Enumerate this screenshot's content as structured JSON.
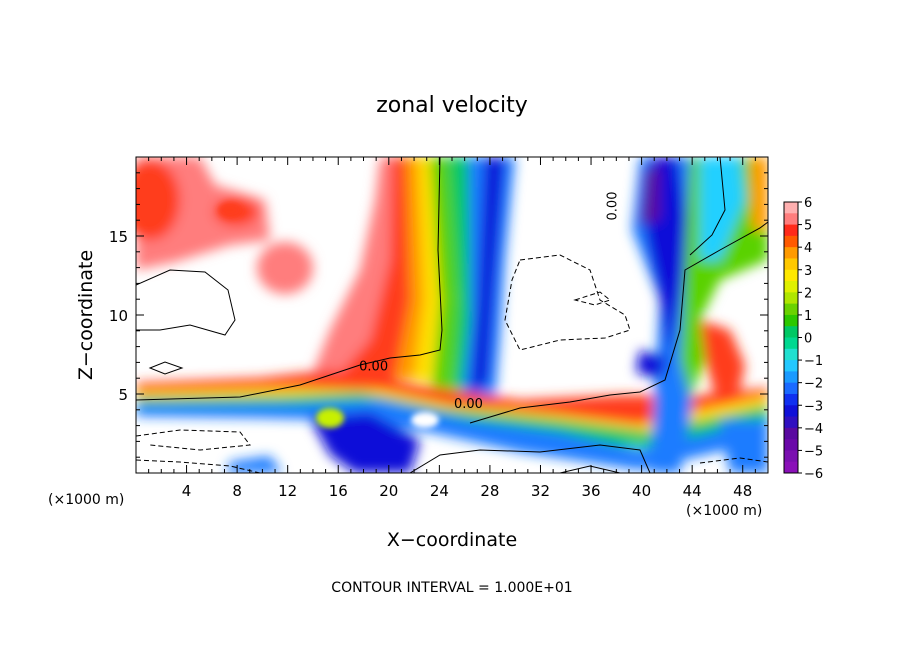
{
  "chart_data": {
    "type": "heatmap",
    "title": "zonal velocity",
    "xlabel": "X−coordinate",
    "ylabel": "Z−coordinate",
    "x_unit_left": "(×1000 m)",
    "x_unit_right": "(×1000 m)",
    "footer": "CONTOUR INTERVAL = 1.000E+01",
    "xlim": [
      0,
      50
    ],
    "ylim": [
      0,
      20
    ],
    "x_ticks": [
      4,
      8,
      12,
      16,
      20,
      24,
      28,
      32,
      36,
      40,
      44,
      48
    ],
    "y_ticks": [
      5,
      10,
      15
    ],
    "x_tick_labels": [
      "4",
      "8",
      "12",
      "16",
      "20",
      "24",
      "28",
      "32",
      "36",
      "40",
      "44",
      "48"
    ],
    "y_tick_labels": [
      "5",
      "10",
      "15"
    ],
    "colorbar": {
      "range": [
        -6,
        6
      ],
      "tick_values": [
        6,
        5,
        4,
        3,
        2,
        1,
        0,
        -1,
        -2,
        -3,
        -4,
        -5,
        -6
      ],
      "tick_labels": [
        "6",
        "5",
        "4",
        "3",
        "2",
        "1",
        "0",
        "−1",
        "−2",
        "−3",
        "−4",
        "−5",
        "−6"
      ]
    },
    "contour_labels": [
      {
        "text": "0.00",
        "x": 18.8,
        "z": 6.5
      },
      {
        "text": "0.00",
        "x": 26.3,
        "z": 4.1
      },
      {
        "text": "0.00",
        "x": 38.0,
        "z": 16.9
      }
    ],
    "saturated_features": [
      {
        "label": "upper-left positive region",
        "x": 0,
        "z": 17
      },
      {
        "label": "lower-level westerly band",
        "z": 5
      },
      {
        "label": "strong jet near x=20–22",
        "x": 21
      },
      {
        "label": "negative column near x=26",
        "x": 26
      },
      {
        "label": "negative column near x=43",
        "x": 43
      }
    ],
    "colors": {
      "palette": [
        "#5a0aa0",
        "#1010d8",
        "#1a7bff",
        "#23d0ff",
        "#00c864",
        "#5ad200",
        "#c8f000",
        "#ffe000",
        "#ff9a00",
        "#ff3c1e",
        "#ff7d7d"
      ]
    },
    "grid": false
  }
}
